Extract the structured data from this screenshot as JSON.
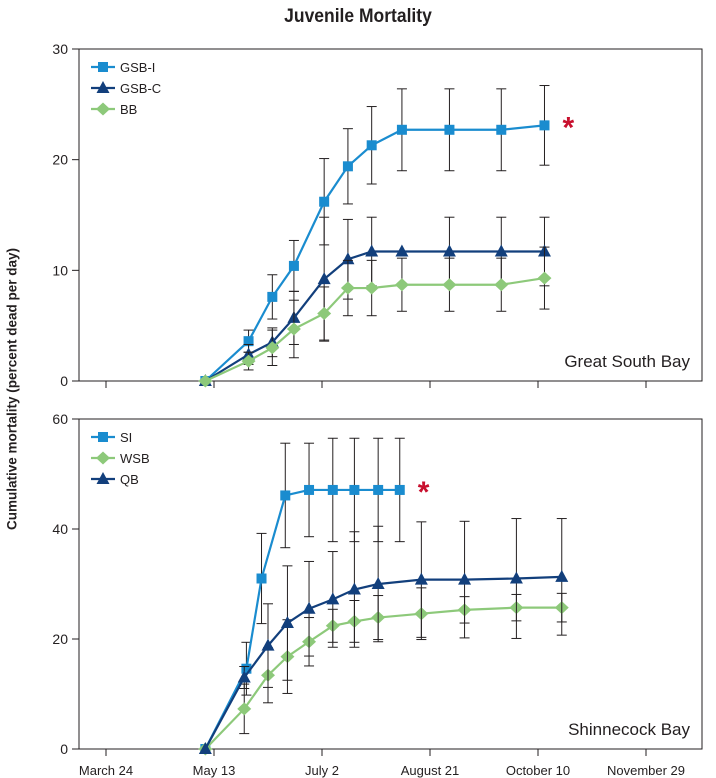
{
  "title": "Juvenile Mortality",
  "ylabel": "Cumulative mortality (percent dead per day)",
  "colors": {
    "light_blue": "#1a8ccf",
    "dark_blue": "#123f7c",
    "green": "#8dc97a",
    "asterisk": "#c8102e",
    "axis": "#231f20"
  },
  "chart_data": [
    {
      "type": "line",
      "panel": "Great South Bay",
      "annotation": "Great South Bay",
      "ylim": [
        0,
        30
      ],
      "yticks": [
        "0",
        "10",
        "20",
        "30"
      ],
      "xticks": [],
      "legend_position": "top-left",
      "significance_marker": {
        "text": "*",
        "series": "GSB-I"
      },
      "series": [
        {
          "name": "GSB-I",
          "marker": "square",
          "color": "#1a8ccf",
          "x": [
            130,
            150,
            161,
            171,
            185,
            196,
            207,
            221,
            243,
            267,
            287
          ],
          "y": [
            0,
            3.6,
            7.6,
            10.4,
            16.2,
            19.4,
            21.3,
            22.7,
            22.7,
            22.7,
            23.1
          ],
          "err": [
            0,
            1.0,
            2.0,
            2.3,
            3.9,
            3.4,
            3.5,
            3.7,
            3.7,
            3.7,
            3.6
          ]
        },
        {
          "name": "GSB-C",
          "marker": "triangle",
          "color": "#123f7c",
          "x": [
            130,
            150,
            161,
            171,
            185,
            196,
            207,
            221,
            243,
            267,
            287
          ],
          "y": [
            0,
            2.4,
            3.5,
            5.7,
            9.2,
            11.0,
            11.7,
            11.7,
            11.7,
            11.7,
            11.7
          ],
          "err": [
            0,
            0.9,
            1.3,
            2.4,
            5.6,
            3.6,
            3.1,
            0,
            3.1,
            3.1,
            3.1
          ]
        },
        {
          "name": "BB",
          "marker": "diamond",
          "color": "#8dc97a",
          "x": [
            130,
            150,
            161,
            171,
            185,
            196,
            207,
            221,
            243,
            267,
            287
          ],
          "y": [
            0,
            1.8,
            3.0,
            4.7,
            6.1,
            8.4,
            8.4,
            8.7,
            8.7,
            8.7,
            9.3
          ],
          "err": [
            0,
            0.8,
            1.6,
            2.6,
            2.4,
            2.5,
            2.5,
            2.4,
            2.4,
            2.4,
            2.8
          ]
        }
      ]
    },
    {
      "type": "line",
      "panel": "Shinnecock Bay",
      "annotation": "Shinnecock Bay",
      "ylim": [
        0,
        60
      ],
      "yticks": [
        "0",
        "20",
        "40",
        "60"
      ],
      "xlim": [
        84,
        334
      ],
      "xticks": [
        "March 24",
        "May 13",
        "July 2",
        "August 21",
        "October 10",
        "November 29"
      ],
      "xtick_values": [
        84,
        134,
        184,
        234,
        284,
        334
      ],
      "legend_position": "top-left",
      "significance_marker": {
        "text": "*",
        "series": "SI"
      },
      "series": [
        {
          "name": "SI",
          "marker": "square",
          "color": "#1a8ccf",
          "x": [
            130,
            149,
            156,
            167,
            178,
            189,
            199,
            210,
            220
          ],
          "y": [
            0,
            14.6,
            31.0,
            46.1,
            47.1,
            47.1,
            47.1,
            47.1,
            47.1
          ],
          "err": [
            0,
            4.8,
            8.2,
            9.5,
            8.5,
            9.4,
            9.4,
            9.4,
            9.4
          ]
        },
        {
          "name": "WSB",
          "marker": "diamond",
          "color": "#8dc97a",
          "x": [
            130,
            148,
            159,
            168,
            178,
            189,
            199,
            210,
            230,
            250,
            274,
            295
          ],
          "y": [
            0,
            7.3,
            13.4,
            16.8,
            19.5,
            22.4,
            23.2,
            23.9,
            24.6,
            25.3,
            25.7,
            25.7
          ],
          "err": [
            0,
            4.5,
            5.0,
            6.7,
            4.4,
            3.0,
            3.8,
            4.0,
            4.7,
            2.4,
            2.4,
            2.6
          ]
        },
        {
          "name": "QB",
          "marker": "triangle",
          "color": "#123f7c",
          "x": [
            130,
            148,
            159,
            168,
            178,
            189,
            199,
            210,
            230,
            250,
            274,
            295
          ],
          "y": [
            0,
            13.0,
            18.8,
            22.9,
            25.5,
            27.2,
            29.0,
            30.0,
            30.8,
            30.8,
            31.0,
            31.3
          ],
          "err": [
            0,
            2.0,
            7.6,
            10.4,
            8.6,
            8.7,
            10.5,
            10.5,
            10.5,
            10.6,
            10.9,
            10.6
          ]
        }
      ]
    }
  ]
}
